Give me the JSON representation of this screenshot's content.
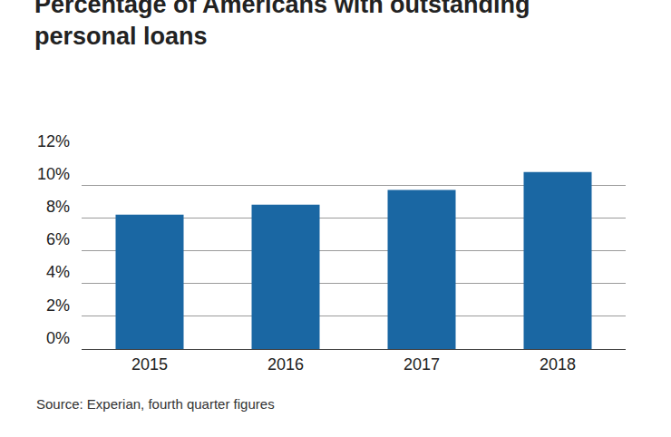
{
  "chart_data": {
    "type": "bar",
    "title": "Percentage of Americans with outstanding personal loans",
    "source": "Source: Experian, fourth quarter figures",
    "categories": [
      "2015",
      "2016",
      "2017",
      "2018"
    ],
    "values": [
      8.2,
      8.8,
      9.7,
      10.8
    ],
    "color": "#1a67a3",
    "ylim": [
      0,
      12
    ],
    "yticks": [
      {
        "value": 0,
        "label": "0%"
      },
      {
        "value": 2,
        "label": "2%"
      },
      {
        "value": 4,
        "label": "4%"
      },
      {
        "value": 6,
        "label": "6%"
      },
      {
        "value": 8,
        "label": "8%"
      },
      {
        "value": 10,
        "label": "10%"
      },
      {
        "value": 12,
        "label": "12%"
      }
    ],
    "grid": true
  }
}
